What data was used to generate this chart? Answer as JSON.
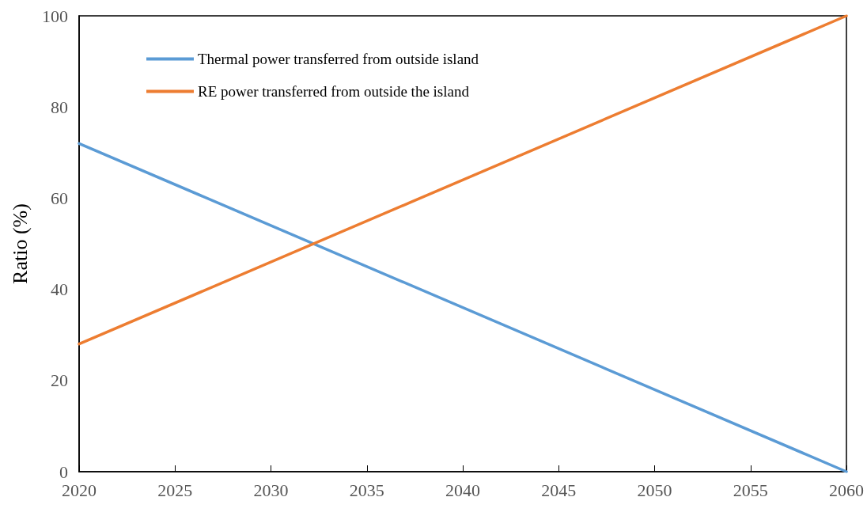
{
  "chart_data": {
    "type": "line",
    "ylabel": "Ratio (%)",
    "x": [
      2020,
      2060
    ],
    "series": [
      {
        "name": "Thermal power transferred from outside island",
        "color": "#5b9bd5",
        "values": [
          72,
          0
        ]
      },
      {
        "name": "RE power transferred from outside the island",
        "color": "#ed7d31",
        "values": [
          28,
          100
        ]
      }
    ],
    "xlim": [
      2020,
      2060
    ],
    "xticks": [
      2020,
      2025,
      2030,
      2035,
      2040,
      2045,
      2050,
      2055,
      2060
    ],
    "ylim": [
      0,
      100
    ],
    "yticks": [
      0,
      20,
      40,
      60,
      80,
      100
    ],
    "grid": false,
    "legend": "top left",
    "marker": "none",
    "line_style": "solid"
  }
}
